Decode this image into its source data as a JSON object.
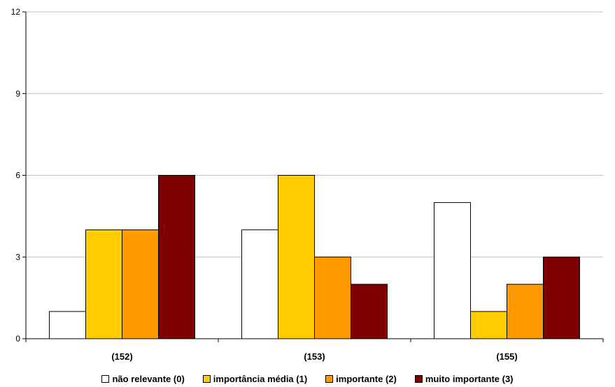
{
  "chart_data": {
    "type": "bar",
    "categories": [
      "(152)",
      "(153)",
      "(155)"
    ],
    "series": [
      {
        "name": "não relevante (0)",
        "values": [
          1,
          4,
          5
        ],
        "color": "#ffffff"
      },
      {
        "name": "importância média (1)",
        "values": [
          4,
          6,
          1
        ],
        "color": "#ffcc00"
      },
      {
        "name": "importante (2)",
        "values": [
          4,
          3,
          2
        ],
        "color": "#ff9900"
      },
      {
        "name": "muito importante (3)",
        "values": [
          6,
          2,
          3
        ],
        "color": "#800000"
      }
    ],
    "ylim": [
      0,
      12
    ],
    "yticks": [
      0,
      3,
      6,
      9,
      12
    ],
    "grid": true,
    "legend_position": "bottom",
    "gridline_color": "#c0c0c0"
  }
}
